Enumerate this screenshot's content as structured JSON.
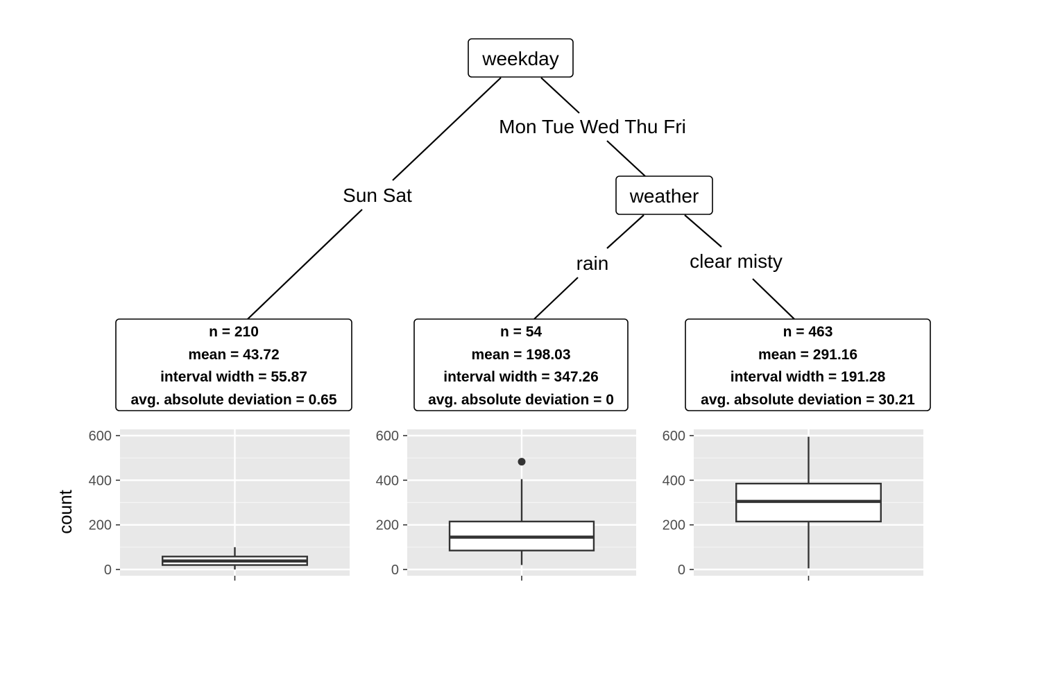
{
  "tree": {
    "root": {
      "label": "weekday"
    },
    "inner": {
      "label": "weather"
    },
    "edges": {
      "root_left": "Sun Sat",
      "root_right": "Mon Tue Wed Thu Fri",
      "inner_left": "rain",
      "inner_right": "clear misty"
    },
    "leaves": [
      {
        "n": "n = 210",
        "mean": "mean = 43.72",
        "width": "interval width = 55.87",
        "dev": "avg. absolute deviation = 0.65"
      },
      {
        "n": "n = 54",
        "mean": "mean = 198.03",
        "width": "interval width = 347.26",
        "dev": "avg. absolute deviation = 0"
      },
      {
        "n": "n = 463",
        "mean": "mean = 291.16",
        "width": "interval width = 191.28",
        "dev": "avg. absolute deviation = 30.21"
      }
    ]
  },
  "chart_data": {
    "type": "boxplot",
    "ylabel": "count",
    "ylim": [
      0,
      600
    ],
    "yticks": [
      "0",
      "200",
      "400",
      "600"
    ],
    "panel_bg": "#e8e8e8",
    "boxes": [
      {
        "whisker_low": 0,
        "q1": 20,
        "median": 38,
        "q3": 58,
        "whisker_high": 100,
        "outliers": []
      },
      {
        "whisker_low": 20,
        "q1": 85,
        "median": 145,
        "q3": 215,
        "whisker_high": 405,
        "outliers": [
          483
        ]
      },
      {
        "whisker_low": 5,
        "q1": 215,
        "median": 305,
        "q3": 385,
        "whisker_high": 595,
        "outliers": []
      }
    ]
  }
}
